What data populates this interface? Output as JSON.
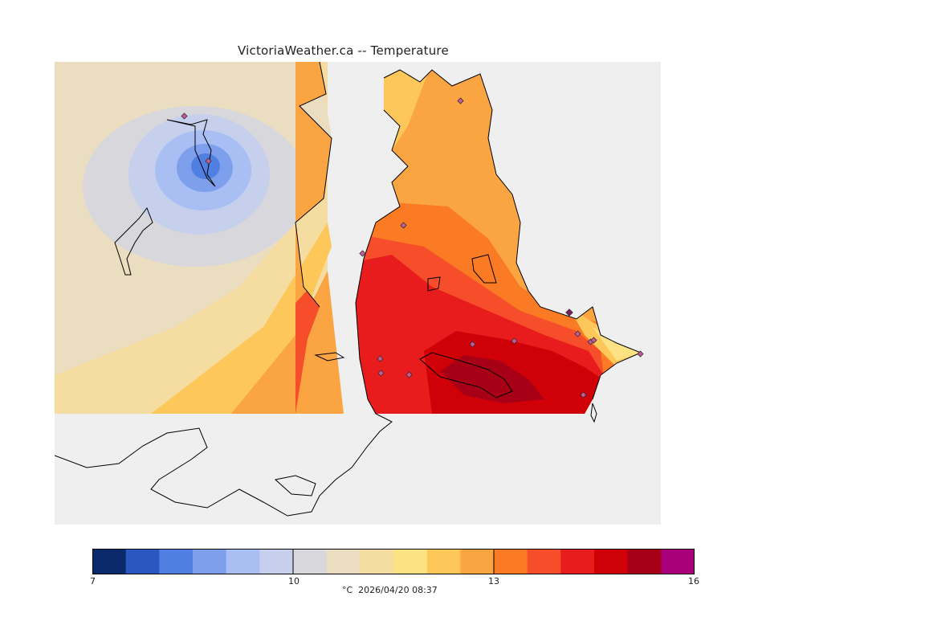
{
  "title": "VictoriaWeather.ca -- Temperature",
  "legend": {
    "min": 7,
    "max": 16,
    "ticks": [
      "7",
      "10",
      "13",
      "16"
    ],
    "caption": "°C  2026/04/20 08:37",
    "colors": [
      "#0b2a6b",
      "#2b57c0",
      "#4f7fe0",
      "#7ea0ec",
      "#a9bff3",
      "#c6d0ec",
      "#d8d8dc",
      "#ebddc0",
      "#f5dca0",
      "#fde283",
      "#fdc75a",
      "#fba442",
      "#fb7a24",
      "#f64e2a",
      "#e81c1c",
      "#cf0008",
      "#a70016",
      "#a8007a"
    ]
  },
  "colors": {
    "water": "#efefef",
    "land_outline": "#000000",
    "station_marker": "#c85a9a"
  }
}
